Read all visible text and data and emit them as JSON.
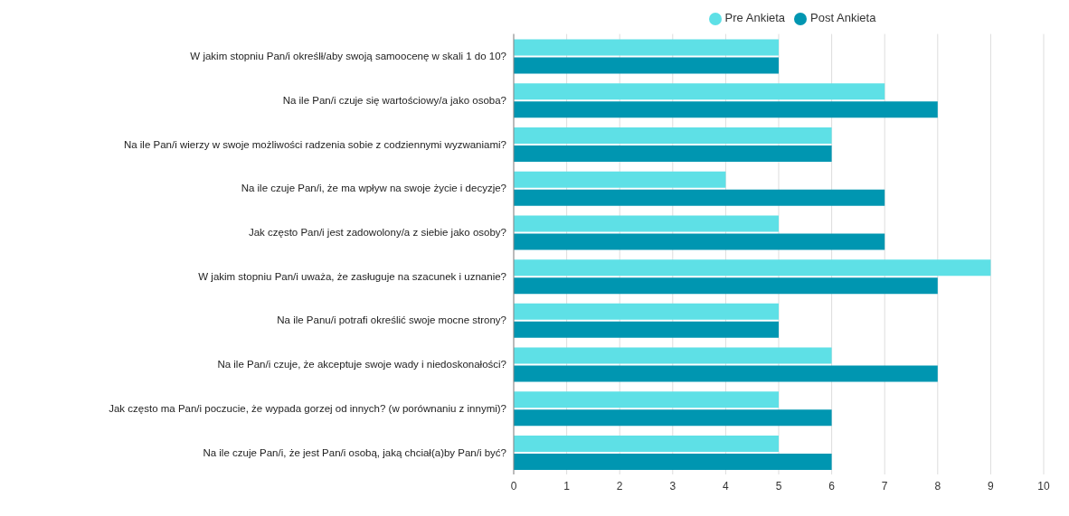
{
  "chart_data": {
    "type": "bar",
    "orientation": "horizontal",
    "categories": [
      "W jakim stopniu Pan/i określł/aby swoją samoocenę w skali 1 do 10?",
      "Na ile Pan/i czuje się wartościowy/a jako osoba?",
      "Na ile Pan/i wierzy w swoje możliwości radzenia sobie z codziennymi wyzwaniami?",
      "Na ile czuje Pan/i, że ma wpływ na swoje życie i decyzje?",
      "Jak często Pan/i jest zadowolony/a z siebie jako osoby?",
      "W jakim stopniu Pan/i uważa, że zasługuje na szacunek i uznanie?",
      "Na ile Panu/i potrafi określić swoje mocne strony?",
      "Na ile Pan/i czuje, że akceptuje swoje wady i niedoskonałości?",
      "Jak często ma Pan/i poczucie, że wypada gorzej od innych? (w porównaniu z innymi)?",
      "Na ile czuje Pan/i, że jest Pan/i osobą, jaką chciał(a)by Pan/i być?"
    ],
    "series": [
      {
        "name": "Pre Ankieta",
        "color": "#5ee0e6",
        "values": [
          5,
          7,
          6,
          4,
          5,
          9,
          5,
          6,
          5,
          5
        ]
      },
      {
        "name": "Post Ankieta",
        "color": "#0096b1",
        "values": [
          5,
          8,
          6,
          7,
          7,
          8,
          5,
          8,
          6,
          6
        ]
      }
    ],
    "xlim": [
      0,
      10
    ],
    "xticks": [
      0,
      1,
      2,
      3,
      4,
      5,
      6,
      7,
      8,
      9,
      10
    ],
    "grid": "x",
    "legend": "top"
  }
}
